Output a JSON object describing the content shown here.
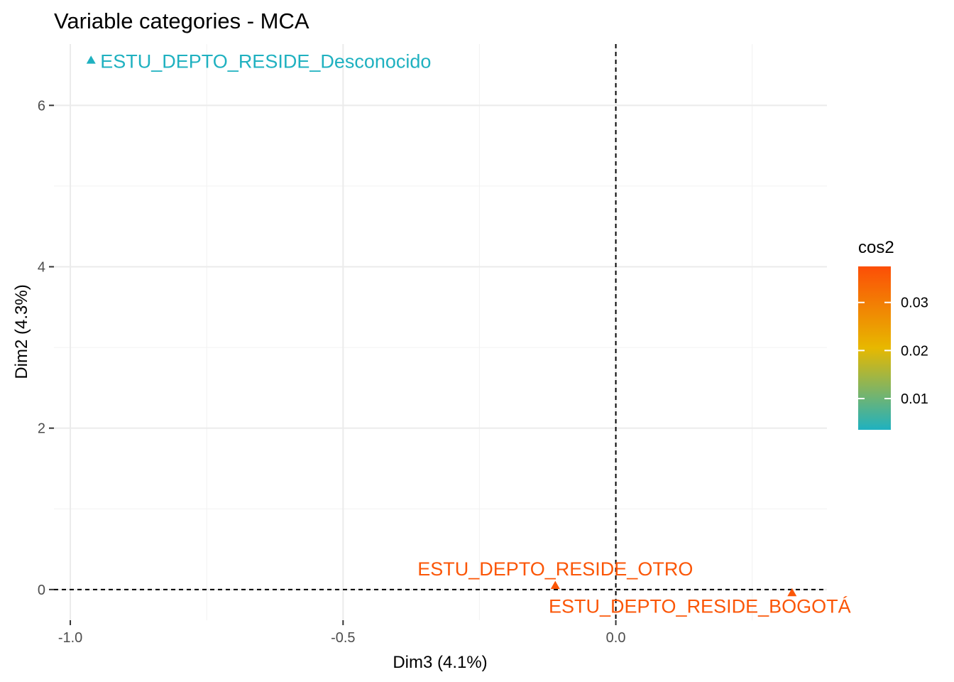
{
  "chart_data": {
    "type": "scatter",
    "title": "Variable categories - MCA",
    "xlabel": "Dim3 (4.1%)",
    "ylabel": "Dim2 (4.3%)",
    "xlim": [
      -1.03,
      0.387
    ],
    "ylim": [
      -0.38,
      6.76
    ],
    "x_ticks": [
      -1.0,
      -0.5,
      0.0
    ],
    "x_tick_labels": [
      "-1.0",
      "-0.5",
      "0.0"
    ],
    "y_ticks": [
      0,
      2,
      4,
      6
    ],
    "y_tick_labels": [
      "0",
      "2",
      "4",
      "6"
    ],
    "grid": true,
    "reference_lines": {
      "x": 0,
      "y": 0,
      "style": "dashed"
    },
    "points": [
      {
        "label": "ESTU_DEPTO_RESIDE_Desconocido",
        "x": -0.962,
        "y": 6.56,
        "cos2": 0.0045,
        "color": "#1fb1c0"
      },
      {
        "label": "ESTU_DEPTO_RESIDE_OTRO",
        "x": -0.111,
        "y": 0.05,
        "cos2": 0.036,
        "color": "#fb5607"
      },
      {
        "label": "ESTU_DEPTO_RESIDE_BOGOTÁ",
        "x": 0.323,
        "y": -0.04,
        "cos2": 0.036,
        "color": "#fb5607"
      }
    ],
    "legend": {
      "title": "cos2",
      "placement": "right",
      "range": [
        0.0035,
        0.0375
      ],
      "ticks": [
        0.01,
        0.02,
        0.03
      ],
      "tick_labels": [
        "0.01",
        "0.02",
        "0.03"
      ],
      "gradient": [
        "#1fb1c0",
        "#e7b800",
        "#fc4e07"
      ]
    }
  }
}
